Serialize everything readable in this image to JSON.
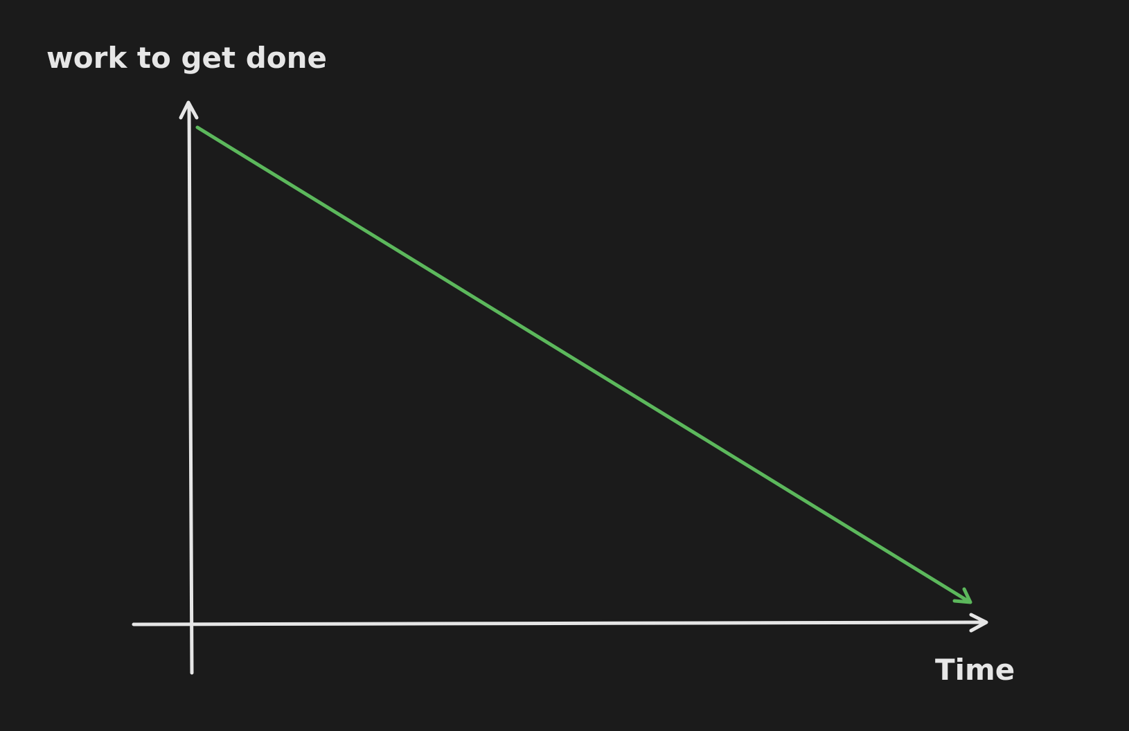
{
  "labels": {
    "y_axis": "work to get done",
    "x_axis": "Time"
  },
  "colors": {
    "background": "#1b1b1b",
    "axis": "#e6e6e6",
    "trend": "#5cb85c"
  },
  "icons": {
    "y_axis_head": "arrow-up-icon",
    "x_axis_head": "arrow-right-icon",
    "trend_head": "arrow-down-right-icon"
  }
}
